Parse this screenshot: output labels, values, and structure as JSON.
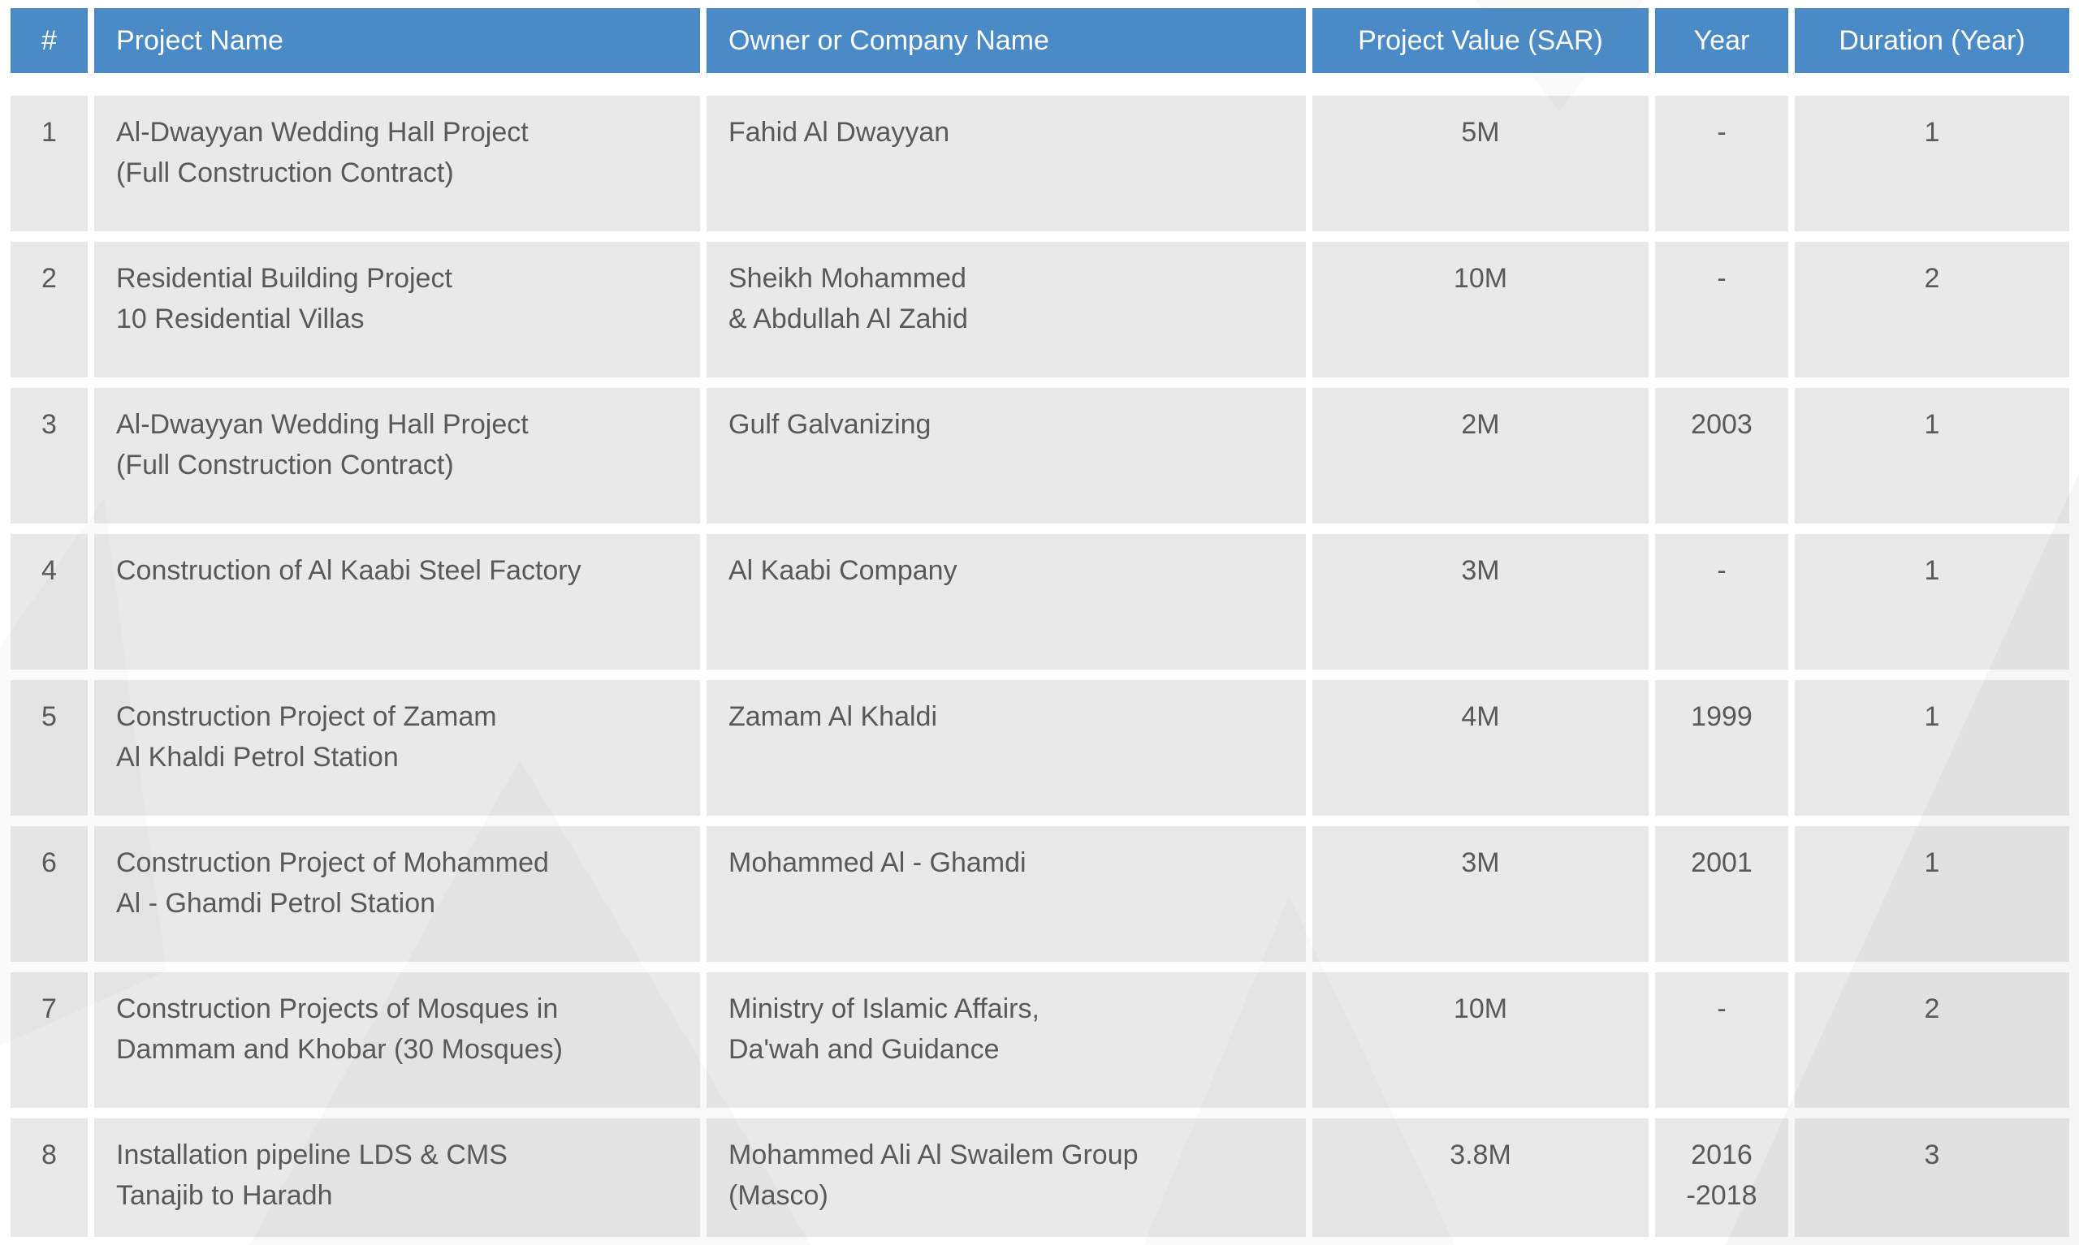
{
  "colors": {
    "page_bg": "#ffffff",
    "header_bg": "#4a8bc7",
    "header_text": "#ffffff",
    "cell_bg": "#e9e9e9",
    "cell_text": "#595959"
  },
  "table": {
    "columns": [
      {
        "key": "num",
        "label": "#"
      },
      {
        "key": "project",
        "label": "Project Name"
      },
      {
        "key": "owner",
        "label": "Owner or Company Name"
      },
      {
        "key": "value",
        "label": "Project  Value (SAR)"
      },
      {
        "key": "year",
        "label": "Year"
      },
      {
        "key": "duration",
        "label": "Duration (Year)"
      }
    ],
    "rows": [
      {
        "num": "1",
        "project": "Al-Dwayyan Wedding Hall Project\n(Full Construction Contract)",
        "owner": "Fahid Al Dwayyan",
        "value": "5M",
        "year": "-",
        "duration": "1"
      },
      {
        "num": "2",
        "project": "Residential Building Project\n10 Residential Villas",
        "owner": "Sheikh Mohammed\n& Abdullah Al Zahid",
        "value": "10M",
        "year": "-",
        "duration": "2"
      },
      {
        "num": "3",
        "project": "Al-Dwayyan Wedding Hall Project\n(Full Construction Contract)",
        "owner": "Gulf Galvanizing",
        "value": "2M",
        "year": "2003",
        "duration": "1"
      },
      {
        "num": "4",
        "project": "Construction of Al Kaabi Steel Factory",
        "owner": "Al Kaabi Company",
        "value": "3M",
        "year": "-",
        "duration": "1"
      },
      {
        "num": "5",
        "project": "Construction Project of Zamam\nAl Khaldi Petrol Station",
        "owner": "Zamam Al Khaldi",
        "value": "4M",
        "year": "1999",
        "duration": "1"
      },
      {
        "num": "6",
        "project": "Construction Project of Mohammed\nAl - Ghamdi Petrol Station",
        "owner": "Mohammed Al - Ghamdi",
        "value": "3M",
        "year": "2001",
        "duration": "1"
      },
      {
        "num": "7",
        "project": "Construction Projects of Mosques in\nDammam and Khobar (30 Mosques)",
        "owner": "Ministry of Islamic Affairs,\nDa'wah and Guidance",
        "value": "10M",
        "year": "-",
        "duration": "2"
      },
      {
        "num": "8",
        "project": "Installation pipeline LDS & CMS\nTanajib to Haradh",
        "owner": "Mohammed Ali Al Swailem Group\n(Masco)",
        "value": "3.8M",
        "year": "2016\n-2018",
        "duration": "3"
      }
    ]
  }
}
